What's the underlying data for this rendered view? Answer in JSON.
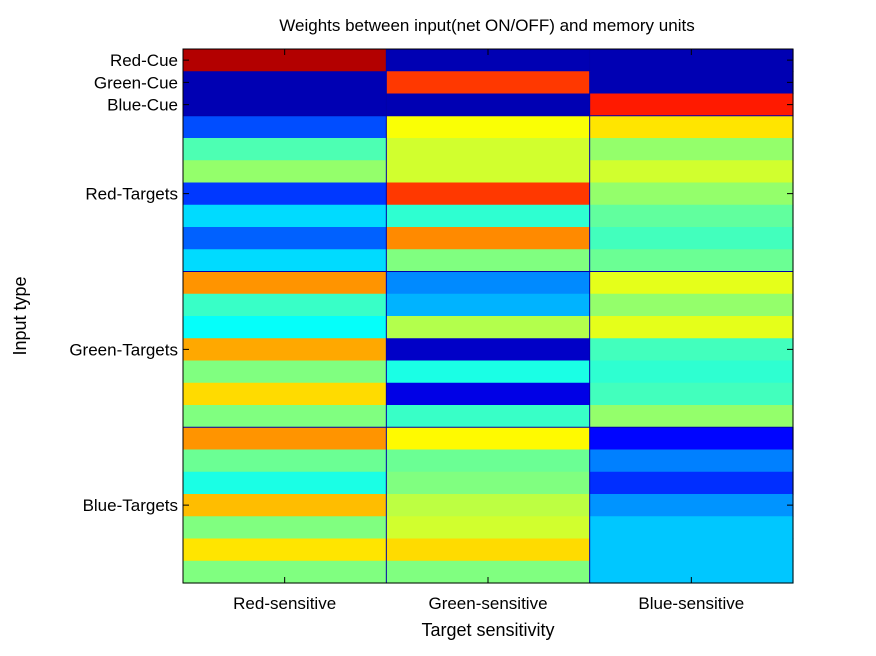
{
  "chart_data": {
    "type": "heatmap",
    "title": "Weights between input(net ON/OFF) and memory units",
    "xlabel": "Target sensitivity",
    "ylabel": "Input type",
    "columns": [
      "Red-sensitive",
      "Green-sensitive",
      "Blue-sensitive"
    ],
    "y_tick_labels": [
      "Red-Cue",
      "Green-Cue",
      "Blue-Cue",
      "Red-Targets",
      "Green-Targets",
      "Blue-Targets"
    ],
    "y_tick_rows": [
      1,
      2,
      3,
      7,
      14,
      21
    ],
    "row_count": 24,
    "colormap": "jet",
    "clim": [
      0,
      1
    ],
    "group_separators_after_rows": [
      3,
      10,
      17
    ],
    "values": [
      [
        0.95,
        0.05,
        0.05
      ],
      [
        0.05,
        0.82,
        0.05
      ],
      [
        0.05,
        0.05,
        0.85
      ],
      [
        0.2,
        0.62,
        0.65
      ],
      [
        0.45,
        0.58,
        0.52
      ],
      [
        0.52,
        0.58,
        0.58
      ],
      [
        0.18,
        0.82,
        0.52
      ],
      [
        0.34,
        0.42,
        0.47
      ],
      [
        0.22,
        0.74,
        0.44
      ],
      [
        0.34,
        0.5,
        0.48
      ],
      [
        0.73,
        0.26,
        0.6
      ],
      [
        0.43,
        0.3,
        0.52
      ],
      [
        0.38,
        0.55,
        0.6
      ],
      [
        0.71,
        0.07,
        0.44
      ],
      [
        0.5,
        0.4,
        0.42
      ],
      [
        0.66,
        0.1,
        0.44
      ],
      [
        0.5,
        0.43,
        0.52
      ],
      [
        0.73,
        0.63,
        0.13
      ],
      [
        0.48,
        0.48,
        0.25
      ],
      [
        0.4,
        0.5,
        0.17
      ],
      [
        0.69,
        0.56,
        0.27
      ],
      [
        0.5,
        0.58,
        0.32
      ],
      [
        0.65,
        0.66,
        0.32
      ],
      [
        0.5,
        0.5,
        0.32
      ]
    ]
  }
}
